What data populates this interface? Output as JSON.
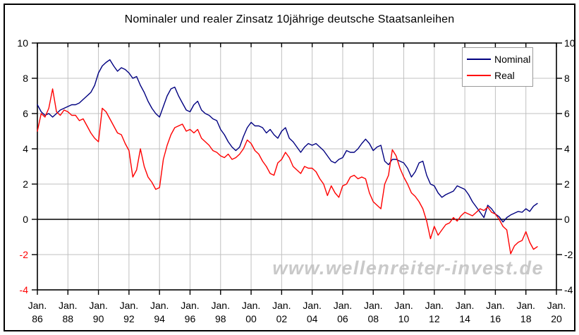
{
  "window": {
    "background": "#ffffff",
    "border_color": "#000000"
  },
  "title": "Nominaler und realer Zinsatz 10jährige deutsche Staatsanleihen",
  "watermark": "www.wellenreiter-invest.de",
  "legend": {
    "position": "top-right",
    "items": [
      {
        "label": "Nominal",
        "color": "#000080"
      },
      {
        "label": "Real",
        "color": "#ff0000"
      }
    ]
  },
  "chart_data": {
    "type": "line",
    "title": "Nominaler und realer Zinsatz 10jährige deutsche Staatsanleihen",
    "xlabel": "",
    "ylabel": "",
    "x_axis": {
      "start_year": 1986,
      "end_year": 2020,
      "tick_interval_years": 2,
      "month_label": "Jan.",
      "tick_labels": [
        "86",
        "88",
        "90",
        "92",
        "94",
        "96",
        "98",
        "00",
        "02",
        "04",
        "06",
        "08",
        "10",
        "12",
        "14",
        "16",
        "18",
        "20"
      ]
    },
    "y_axis": {
      "min": -4,
      "max": 10,
      "tick_step": 2,
      "ticks": [
        10,
        8,
        6,
        4,
        2,
        0,
        -2,
        -4
      ],
      "tick_color": "#000000",
      "negative_color_left": "#ff0000",
      "mirrored_right": true
    },
    "grid": {
      "on": true,
      "color": "#c0c0c0",
      "zero_line_color": "#000000"
    },
    "legend_entries": [
      "Nominal",
      "Real"
    ],
    "series": [
      {
        "name": "Nominal",
        "color": "#000080",
        "points": [
          [
            1986,
            6.5
          ],
          [
            1986.25,
            6.1
          ],
          [
            1986.5,
            5.9
          ],
          [
            1986.75,
            6.0
          ],
          [
            1987,
            5.8
          ],
          [
            1987.25,
            6.0
          ],
          [
            1987.5,
            6.2
          ],
          [
            1987.75,
            6.3
          ],
          [
            1988,
            6.4
          ],
          [
            1988.25,
            6.5
          ],
          [
            1988.5,
            6.5
          ],
          [
            1988.75,
            6.6
          ],
          [
            1989,
            6.8
          ],
          [
            1989.25,
            7.0
          ],
          [
            1989.5,
            7.2
          ],
          [
            1989.75,
            7.6
          ],
          [
            1990,
            8.3
          ],
          [
            1990.25,
            8.7
          ],
          [
            1990.5,
            8.9
          ],
          [
            1990.75,
            9.05
          ],
          [
            1991,
            8.7
          ],
          [
            1991.25,
            8.4
          ],
          [
            1991.5,
            8.6
          ],
          [
            1991.75,
            8.5
          ],
          [
            1992,
            8.3
          ],
          [
            1992.25,
            8.0
          ],
          [
            1992.5,
            8.1
          ],
          [
            1992.75,
            7.6
          ],
          [
            1993,
            7.2
          ],
          [
            1993.25,
            6.7
          ],
          [
            1993.5,
            6.3
          ],
          [
            1993.75,
            6.0
          ],
          [
            1994,
            5.8
          ],
          [
            1994.25,
            6.4
          ],
          [
            1994.5,
            7.0
          ],
          [
            1994.75,
            7.4
          ],
          [
            1995,
            7.5
          ],
          [
            1995.25,
            7.0
          ],
          [
            1995.5,
            6.6
          ],
          [
            1995.75,
            6.2
          ],
          [
            1996,
            6.1
          ],
          [
            1996.25,
            6.5
          ],
          [
            1996.5,
            6.7
          ],
          [
            1996.75,
            6.2
          ],
          [
            1997,
            6.0
          ],
          [
            1997.25,
            5.9
          ],
          [
            1997.5,
            5.7
          ],
          [
            1997.75,
            5.6
          ],
          [
            1998,
            5.1
          ],
          [
            1998.25,
            4.8
          ],
          [
            1998.5,
            4.4
          ],
          [
            1998.75,
            4.1
          ],
          [
            1999,
            3.9
          ],
          [
            1999.25,
            4.1
          ],
          [
            1999.5,
            4.7
          ],
          [
            1999.75,
            5.2
          ],
          [
            2000,
            5.5
          ],
          [
            2000.25,
            5.3
          ],
          [
            2000.5,
            5.3
          ],
          [
            2000.75,
            5.2
          ],
          [
            2001,
            4.9
          ],
          [
            2001.25,
            5.1
          ],
          [
            2001.5,
            4.8
          ],
          [
            2001.75,
            4.6
          ],
          [
            2002,
            5.0
          ],
          [
            2002.25,
            5.2
          ],
          [
            2002.5,
            4.6
          ],
          [
            2002.75,
            4.4
          ],
          [
            2003,
            4.1
          ],
          [
            2003.25,
            3.8
          ],
          [
            2003.5,
            4.1
          ],
          [
            2003.75,
            4.3
          ],
          [
            2004,
            4.2
          ],
          [
            2004.25,
            4.3
          ],
          [
            2004.5,
            4.1
          ],
          [
            2004.75,
            3.9
          ],
          [
            2005,
            3.6
          ],
          [
            2005.25,
            3.3
          ],
          [
            2005.5,
            3.2
          ],
          [
            2005.75,
            3.4
          ],
          [
            2006,
            3.5
          ],
          [
            2006.25,
            3.9
          ],
          [
            2006.5,
            3.8
          ],
          [
            2006.75,
            3.8
          ],
          [
            2007,
            4.0
          ],
          [
            2007.25,
            4.3
          ],
          [
            2007.5,
            4.55
          ],
          [
            2007.75,
            4.3
          ],
          [
            2008,
            3.9
          ],
          [
            2008.25,
            4.1
          ],
          [
            2008.5,
            4.2
          ],
          [
            2008.75,
            3.3
          ],
          [
            2009,
            3.1
          ],
          [
            2009.25,
            3.4
          ],
          [
            2009.5,
            3.4
          ],
          [
            2009.75,
            3.3
          ],
          [
            2010,
            3.2
          ],
          [
            2010.25,
            2.9
          ],
          [
            2010.5,
            2.4
          ],
          [
            2010.75,
            2.7
          ],
          [
            2011,
            3.2
          ],
          [
            2011.25,
            3.3
          ],
          [
            2011.5,
            2.5
          ],
          [
            2011.75,
            2.0
          ],
          [
            2012,
            1.9
          ],
          [
            2012.25,
            1.5
          ],
          [
            2012.5,
            1.25
          ],
          [
            2012.75,
            1.4
          ],
          [
            2013,
            1.5
          ],
          [
            2013.25,
            1.6
          ],
          [
            2013.5,
            1.9
          ],
          [
            2013.75,
            1.8
          ],
          [
            2014,
            1.7
          ],
          [
            2014.25,
            1.4
          ],
          [
            2014.5,
            1.0
          ],
          [
            2014.75,
            0.7
          ],
          [
            2015,
            0.4
          ],
          [
            2015.25,
            0.1
          ],
          [
            2015.5,
            0.8
          ],
          [
            2015.75,
            0.6
          ],
          [
            2016,
            0.3
          ],
          [
            2016.25,
            0.15
          ],
          [
            2016.5,
            -0.15
          ],
          [
            2016.75,
            0.1
          ],
          [
            2017,
            0.25
          ],
          [
            2017.25,
            0.35
          ],
          [
            2017.5,
            0.45
          ],
          [
            2017.75,
            0.4
          ],
          [
            2018,
            0.6
          ],
          [
            2018.25,
            0.45
          ],
          [
            2018.5,
            0.75
          ],
          [
            2018.75,
            0.9
          ]
        ]
      },
      {
        "name": "Real",
        "color": "#ff0000",
        "points": [
          [
            1986,
            5.0
          ],
          [
            1986.25,
            6.0
          ],
          [
            1986.5,
            5.8
          ],
          [
            1986.75,
            6.3
          ],
          [
            1987,
            7.4
          ],
          [
            1987.25,
            6.1
          ],
          [
            1987.5,
            5.9
          ],
          [
            1987.75,
            6.2
          ],
          [
            1988,
            6.1
          ],
          [
            1988.25,
            5.9
          ],
          [
            1988.5,
            5.9
          ],
          [
            1988.75,
            5.6
          ],
          [
            1989,
            5.7
          ],
          [
            1989.25,
            5.3
          ],
          [
            1989.5,
            4.9
          ],
          [
            1989.75,
            4.6
          ],
          [
            1990,
            4.4
          ],
          [
            1990.25,
            6.3
          ],
          [
            1990.5,
            6.1
          ],
          [
            1990.75,
            5.7
          ],
          [
            1991,
            5.3
          ],
          [
            1991.25,
            4.9
          ],
          [
            1991.5,
            4.8
          ],
          [
            1991.75,
            4.3
          ],
          [
            1992,
            3.9
          ],
          [
            1992.25,
            2.4
          ],
          [
            1992.5,
            2.8
          ],
          [
            1992.75,
            4.0
          ],
          [
            1993,
            3.0
          ],
          [
            1993.25,
            2.4
          ],
          [
            1993.5,
            2.1
          ],
          [
            1993.75,
            1.7
          ],
          [
            1994,
            1.8
          ],
          [
            1994.25,
            3.4
          ],
          [
            1994.5,
            4.2
          ],
          [
            1994.75,
            4.8
          ],
          [
            1995,
            5.2
          ],
          [
            1995.25,
            5.3
          ],
          [
            1995.5,
            5.4
          ],
          [
            1995.75,
            5.0
          ],
          [
            1996,
            5.1
          ],
          [
            1996.25,
            4.9
          ],
          [
            1996.5,
            5.1
          ],
          [
            1996.75,
            4.6
          ],
          [
            1997,
            4.4
          ],
          [
            1997.25,
            4.2
          ],
          [
            1997.5,
            3.9
          ],
          [
            1997.75,
            3.8
          ],
          [
            1998,
            3.6
          ],
          [
            1998.25,
            3.5
          ],
          [
            1998.5,
            3.7
          ],
          [
            1998.75,
            3.4
          ],
          [
            1999,
            3.5
          ],
          [
            1999.25,
            3.7
          ],
          [
            1999.5,
            4.0
          ],
          [
            1999.75,
            4.5
          ],
          [
            2000,
            4.3
          ],
          [
            2000.25,
            3.9
          ],
          [
            2000.5,
            3.7
          ],
          [
            2000.75,
            3.3
          ],
          [
            2001,
            3.0
          ],
          [
            2001.25,
            2.6
          ],
          [
            2001.5,
            2.5
          ],
          [
            2001.75,
            3.2
          ],
          [
            2002,
            3.4
          ],
          [
            2002.25,
            3.8
          ],
          [
            2002.5,
            3.5
          ],
          [
            2002.75,
            3.0
          ],
          [
            2003,
            2.8
          ],
          [
            2003.25,
            2.6
          ],
          [
            2003.5,
            3.0
          ],
          [
            2003.75,
            2.9
          ],
          [
            2004,
            2.9
          ],
          [
            2004.25,
            2.7
          ],
          [
            2004.5,
            2.3
          ],
          [
            2004.75,
            2.0
          ],
          [
            2005,
            1.35
          ],
          [
            2005.25,
            1.9
          ],
          [
            2005.5,
            1.5
          ],
          [
            2005.75,
            1.25
          ],
          [
            2006,
            1.9
          ],
          [
            2006.25,
            2.0
          ],
          [
            2006.5,
            2.4
          ],
          [
            2006.75,
            2.5
          ],
          [
            2007,
            2.3
          ],
          [
            2007.25,
            2.4
          ],
          [
            2007.5,
            2.3
          ],
          [
            2007.75,
            1.5
          ],
          [
            2008,
            1.0
          ],
          [
            2008.25,
            0.8
          ],
          [
            2008.5,
            0.6
          ],
          [
            2008.75,
            2.0
          ],
          [
            2009,
            2.5
          ],
          [
            2009.25,
            3.95
          ],
          [
            2009.5,
            3.6
          ],
          [
            2009.75,
            2.9
          ],
          [
            2010,
            2.4
          ],
          [
            2010.25,
            2.0
          ],
          [
            2010.5,
            1.5
          ],
          [
            2010.75,
            1.3
          ],
          [
            2011,
            1.0
          ],
          [
            2011.25,
            0.6
          ],
          [
            2011.5,
            -0.1
          ],
          [
            2011.75,
            -1.1
          ],
          [
            2012,
            -0.4
          ],
          [
            2012.25,
            -0.9
          ],
          [
            2012.5,
            -0.6
          ],
          [
            2012.75,
            -0.3
          ],
          [
            2013,
            -0.2
          ],
          [
            2013.25,
            0.1
          ],
          [
            2013.5,
            -0.1
          ],
          [
            2013.75,
            0.2
          ],
          [
            2014,
            0.4
          ],
          [
            2014.25,
            0.3
          ],
          [
            2014.5,
            0.2
          ],
          [
            2014.75,
            0.4
          ],
          [
            2015,
            0.6
          ],
          [
            2015.25,
            0.5
          ],
          [
            2015.5,
            0.7
          ],
          [
            2015.75,
            0.4
          ],
          [
            2016,
            0.3
          ],
          [
            2016.25,
            0.0
          ],
          [
            2016.5,
            -0.4
          ],
          [
            2016.75,
            -0.6
          ],
          [
            2017,
            -1.95
          ],
          [
            2017.25,
            -1.5
          ],
          [
            2017.5,
            -1.3
          ],
          [
            2017.75,
            -1.2
          ],
          [
            2018,
            -0.7
          ],
          [
            2018.25,
            -1.3
          ],
          [
            2018.5,
            -1.7
          ],
          [
            2018.75,
            -1.55
          ]
        ]
      }
    ]
  }
}
